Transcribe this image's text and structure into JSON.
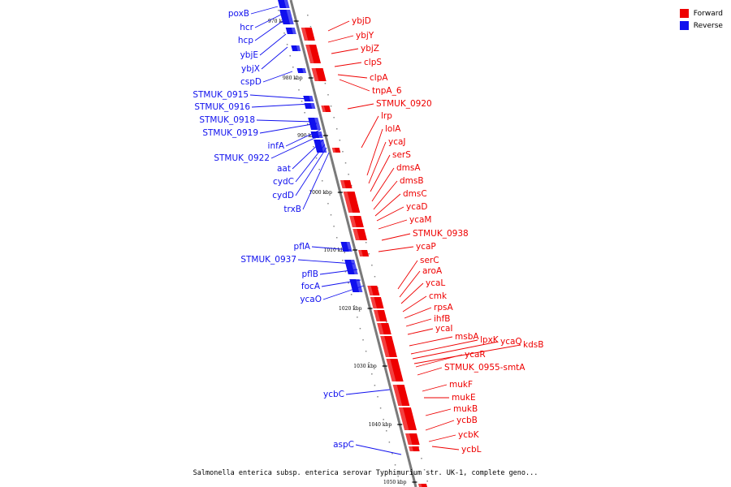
{
  "caption": "Salmonella enterica subsp. enterica serovar Typhimurium str. UK-1, complete geno...",
  "legend": [
    {
      "label": "Forward",
      "color": "#ee0000"
    },
    {
      "label": "Reverse",
      "color": "#1010ee"
    }
  ],
  "ticks": [
    "970 kbp",
    "980 kbp",
    "990 kbp",
    "1000 kbp",
    "1010 kbp",
    "1020 kbp",
    "1030 kbp",
    "1040 kbp",
    "1050 kbp"
  ],
  "reverse_genes": [
    "poxB",
    "hcr",
    "hcp",
    "ybjE",
    "ybjX",
    "cspD",
    "STMUK_0915",
    "STMUK_0916",
    "STMUK_0918",
    "STMUK_0919",
    "infA",
    "STMUK_0922",
    "aat",
    "cydC",
    "cydD",
    "trxB",
    "pflA",
    "STMUK_0937",
    "pflB",
    "focA",
    "ycaO",
    "ycbC",
    "aspC"
  ],
  "forward_genes": [
    "ybjD",
    "ybjY",
    "ybjZ",
    "clpS",
    "clpA",
    "tnpA_6",
    "STMUK_0920",
    "lrp",
    "lolA",
    "ycaJ",
    "serS",
    "dmsA",
    "dmsB",
    "dmsC",
    "ycaD",
    "ycaM",
    "STMUK_0938",
    "ycaP",
    "serC",
    "aroA",
    "ycaL",
    "cmk",
    "rpsA",
    "ihfB",
    "ycaI",
    "msbA",
    "lpxK",
    "ycaQ",
    "kdsB",
    "ycaR",
    "STMUK_0955-smtA",
    "mukF",
    "mukE",
    "mukB",
    "ycbB",
    "ycbK",
    "ycbL"
  ],
  "colors": {
    "forward": "#ee0000",
    "reverse": "#1010ee",
    "backbone": "#888888"
  }
}
